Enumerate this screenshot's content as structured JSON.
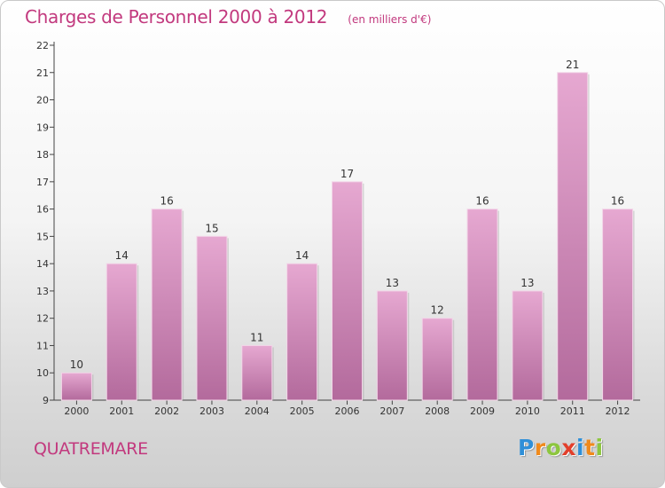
{
  "title": "Charges de Personnel 2000 à 2012",
  "subtitle": "(en milliers d'€)",
  "commune": "QUATREMARE",
  "logo": {
    "letters": [
      "P",
      "r",
      "o",
      "x",
      "i",
      "t",
      "i"
    ],
    "colors": [
      "#2f8fd8",
      "#f08a1c",
      "#8dc63f",
      "#e23f2b",
      "#2f8fd8",
      "#f08a1c",
      "#8dc63f"
    ]
  },
  "chart_data": {
    "type": "bar",
    "categories": [
      "2000",
      "2001",
      "2002",
      "2003",
      "2004",
      "2005",
      "2006",
      "2007",
      "2008",
      "2009",
      "2010",
      "2011",
      "2012"
    ],
    "values": [
      10,
      14,
      16,
      15,
      11,
      14,
      17,
      13,
      12,
      16,
      13,
      21,
      16
    ],
    "title": "Charges de Personnel 2000 à 2012",
    "xlabel": "",
    "ylabel": "",
    "ylim": [
      9,
      22
    ],
    "yticks": [
      9,
      10,
      11,
      12,
      13,
      14,
      15,
      16,
      17,
      18,
      19,
      20,
      21,
      22
    ],
    "grid": false,
    "bar_color": "#d98bbf"
  }
}
